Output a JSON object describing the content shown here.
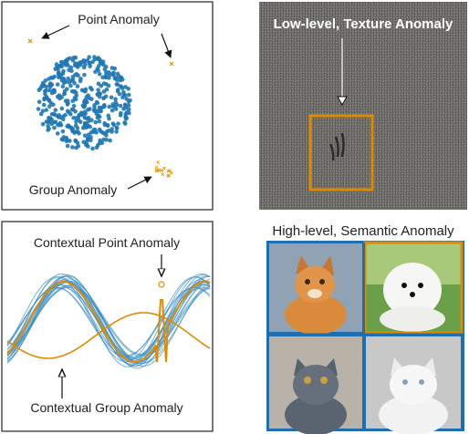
{
  "panels": {
    "point_group": {
      "point_label": "Point Anomaly",
      "group_label": "Group Anomaly"
    },
    "texture": {
      "title": "Low-level, Texture Anomaly"
    },
    "contextual": {
      "point_label": "Contextual Point Anomaly",
      "group_label": "Contextual Group Anomaly"
    },
    "semantic": {
      "title": "High-level, Semantic Anomaly"
    }
  }
}
